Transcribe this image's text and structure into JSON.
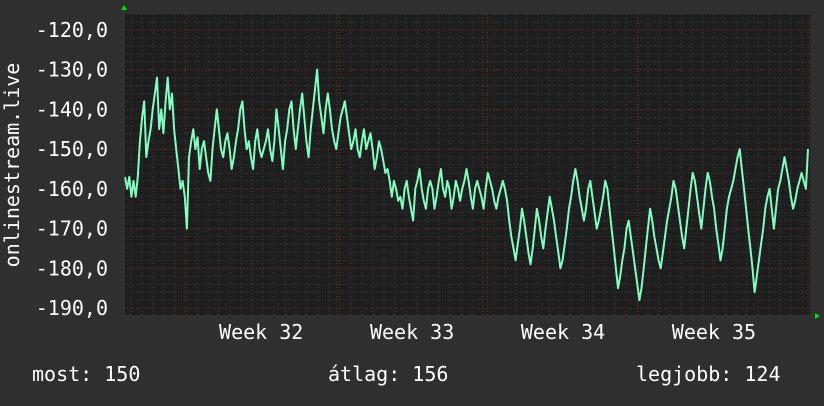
{
  "chart_data": {
    "type": "line",
    "ylabel": "onlinestream.live",
    "ylim": [
      -192,
      -116
    ],
    "y_ticks": [
      -120,
      -130,
      -140,
      -150,
      -160,
      -170,
      -180,
      -190
    ],
    "y_tick_labels": [
      "-120,0",
      "-130,0",
      "-140,0",
      "-150,0",
      "-160,0",
      "-170,0",
      "-180,0",
      "-190,0"
    ],
    "x_labels": [
      {
        "label": "Week 32",
        "x": 0.2
      },
      {
        "label": "Week 33",
        "x": 0.42
      },
      {
        "label": "Week 34",
        "x": 0.64
      },
      {
        "label": "Week 35",
        "x": 0.86
      }
    ],
    "grid": true,
    "colors": {
      "background": "#2f2f2f",
      "plot_background": "#1e1e1e",
      "grid_minor": "#3a3a3a",
      "grid_major": "#6e2a2a",
      "line": "#7fffc0",
      "axis_arrow": "#00e000",
      "text": "#ffffff"
    },
    "series": [
      {
        "values": [
          -157,
          -160,
          -157,
          -162,
          -158,
          -162,
          -157,
          -148,
          -142,
          -138,
          -152,
          -148,
          -145,
          -140,
          -136,
          -132,
          -145,
          -140,
          -146,
          -138,
          -132,
          -140,
          -136,
          -145,
          -150,
          -155,
          -160,
          -158,
          -162,
          -170,
          -152,
          -148,
          -145,
          -150,
          -147,
          -155,
          -150,
          -148,
          -152,
          -156,
          -158,
          -150,
          -145,
          -140,
          -145,
          -150,
          -152,
          -148,
          -146,
          -150,
          -155,
          -152,
          -148,
          -145,
          -140,
          -138,
          -145,
          -150,
          -148,
          -152,
          -155,
          -148,
          -145,
          -150,
          -152,
          -150,
          -148,
          -145,
          -150,
          -153,
          -148,
          -140,
          -145,
          -150,
          -155,
          -148,
          -145,
          -140,
          -138,
          -145,
          -150,
          -145,
          -140,
          -136,
          -142,
          -148,
          -152,
          -145,
          -140,
          -135,
          -130,
          -138,
          -142,
          -146,
          -140,
          -136,
          -140,
          -145,
          -148,
          -150,
          -146,
          -142,
          -140,
          -138,
          -142,
          -146,
          -150,
          -148,
          -145,
          -150,
          -152,
          -148,
          -145,
          -150,
          -148,
          -146,
          -150,
          -155,
          -152,
          -148,
          -150,
          -153,
          -156,
          -155,
          -158,
          -162,
          -158,
          -160,
          -163,
          -162,
          -165,
          -160,
          -158,
          -162,
          -165,
          -168,
          -160,
          -158,
          -155,
          -160,
          -163,
          -165,
          -160,
          -158,
          -160,
          -165,
          -162,
          -158,
          -155,
          -160,
          -162,
          -158,
          -160,
          -165,
          -162,
          -158,
          -160,
          -163,
          -160,
          -158,
          -155,
          -158,
          -162,
          -165,
          -160,
          -158,
          -160,
          -162,
          -165,
          -160,
          -156,
          -158,
          -160,
          -163,
          -165,
          -162,
          -160,
          -158,
          -160,
          -163,
          -168,
          -172,
          -175,
          -178,
          -174,
          -170,
          -165,
          -168,
          -172,
          -176,
          -179,
          -175,
          -170,
          -165,
          -168,
          -172,
          -175,
          -170,
          -166,
          -162,
          -165,
          -168,
          -172,
          -176,
          -180,
          -178,
          -174,
          -170,
          -165,
          -162,
          -158,
          -155,
          -158,
          -162,
          -165,
          -168,
          -165,
          -160,
          -158,
          -162,
          -166,
          -170,
          -168,
          -165,
          -162,
          -158,
          -160,
          -165,
          -170,
          -175,
          -180,
          -185,
          -182,
          -178,
          -175,
          -170,
          -168,
          -172,
          -176,
          -180,
          -184,
          -188,
          -185,
          -180,
          -175,
          -170,
          -165,
          -168,
          -172,
          -175,
          -178,
          -180,
          -176,
          -172,
          -168,
          -165,
          -162,
          -158,
          -160,
          -164,
          -168,
          -172,
          -175,
          -170,
          -165,
          -160,
          -156,
          -158,
          -162,
          -166,
          -170,
          -165,
          -160,
          -156,
          -158,
          -162,
          -165,
          -170,
          -174,
          -178,
          -175,
          -170,
          -165,
          -162,
          -160,
          -158,
          -155,
          -152,
          -150,
          -155,
          -160,
          -165,
          -170,
          -175,
          -180,
          -186,
          -182,
          -178,
          -174,
          -170,
          -165,
          -162,
          -160,
          -165,
          -170,
          -165,
          -160,
          -158,
          -155,
          -152,
          -155,
          -158,
          -162,
          -165,
          -163,
          -160,
          -158,
          -156,
          -158,
          -160,
          -150
        ],
        "color": "#7fffc0"
      }
    ]
  },
  "footer": {
    "current_label": "most:",
    "current_value": "150",
    "average_label": "átlag:",
    "average_value": "156",
    "best_label": "legjobb:",
    "best_value": "124"
  }
}
